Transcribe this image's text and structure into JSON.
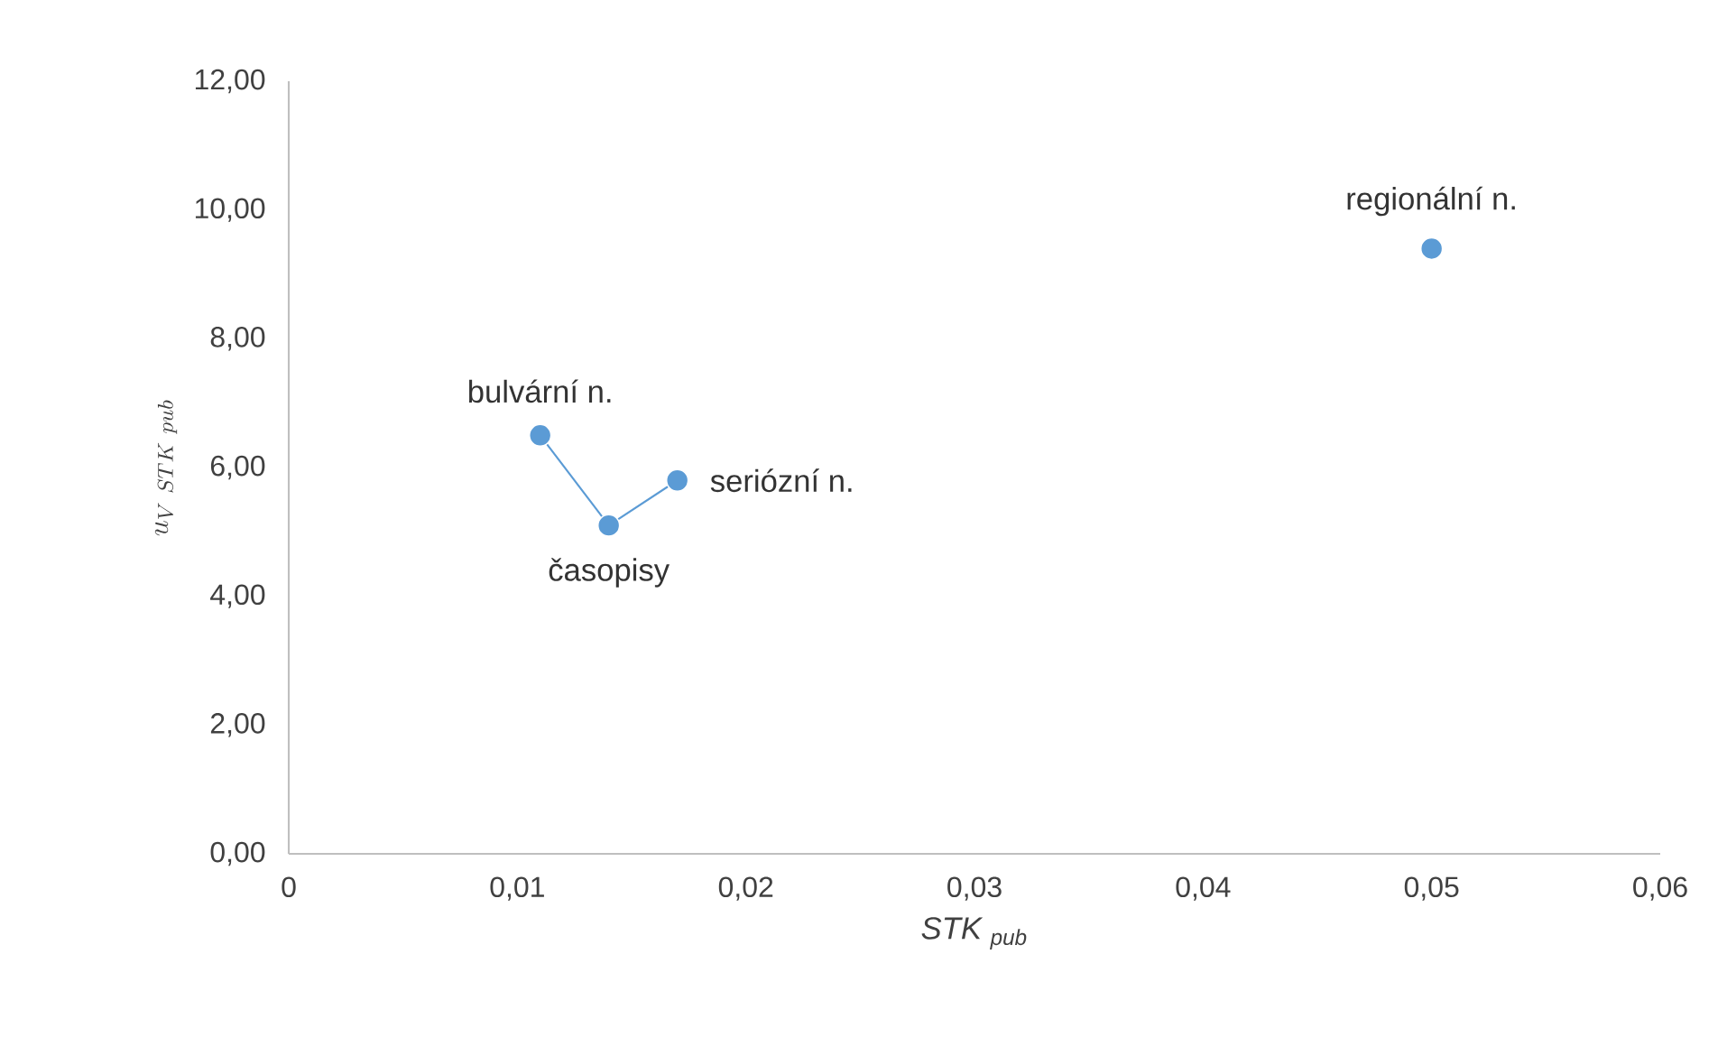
{
  "chart_data": {
    "type": "scatter",
    "xlabel": "STK $_{pub}$",
    "ylabel": "u_{V\\ STK\\ pub}",
    "xlim": [
      0,
      0.06
    ],
    "ylim": [
      0,
      12
    ],
    "xticks": [
      {
        "value": 0,
        "label": "0"
      },
      {
        "value": 0.01,
        "label": "0,01"
      },
      {
        "value": 0.02,
        "label": "0,02"
      },
      {
        "value": 0.03,
        "label": "0,03"
      },
      {
        "value": 0.04,
        "label": "0,04"
      },
      {
        "value": 0.05,
        "label": "0,05"
      },
      {
        "value": 0.06,
        "label": "0,06"
      }
    ],
    "yticks": [
      {
        "value": 0,
        "label": "0,00"
      },
      {
        "value": 2,
        "label": "2,00"
      },
      {
        "value": 4,
        "label": "4,00"
      },
      {
        "value": 6,
        "label": "6,00"
      },
      {
        "value": 8,
        "label": "8,00"
      },
      {
        "value": 10,
        "label": "10,00"
      },
      {
        "value": 12,
        "label": "12,00"
      }
    ],
    "grid": false,
    "marker": "circle",
    "series": [
      {
        "type": "line",
        "color": "#5b9bd5",
        "x": [
          0.011,
          0.014,
          0.017
        ],
        "values": [
          6.5,
          5.1,
          5.8
        ]
      },
      {
        "color": "#5b9bd5",
        "x": [
          0.05
        ],
        "values": [
          9.4
        ]
      }
    ],
    "annotations": [
      {
        "text": "bulvární n.",
        "x": 0.011,
        "y": 6.5
      },
      {
        "text": "časopisy",
        "x": 0.014,
        "y": 5.1
      },
      {
        "text": "seriózní n.",
        "x": 0.017,
        "y": 5.8
      },
      {
        "text": "regionální n.",
        "x": 0.05,
        "y": 9.4
      }
    ]
  }
}
